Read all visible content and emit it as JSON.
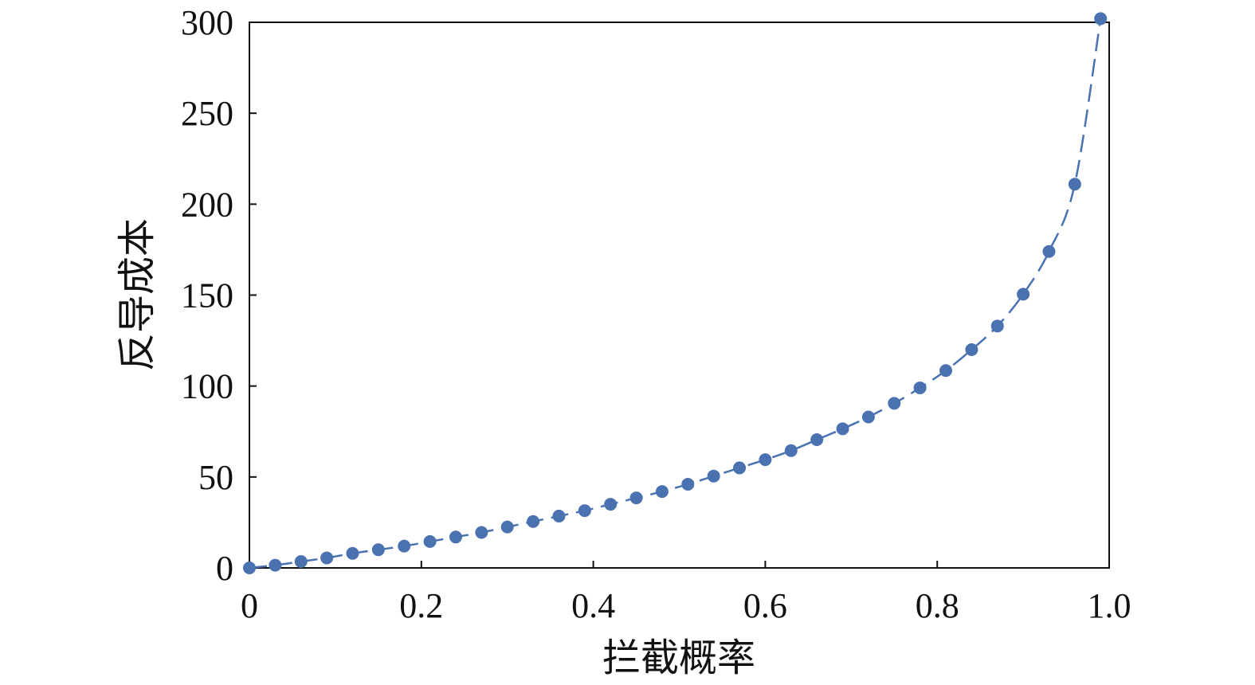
{
  "chart_data": {
    "type": "scatter",
    "title": "",
    "xlabel": "拦截概率",
    "ylabel": "反导成本",
    "xlim": [
      0,
      1.0
    ],
    "ylim": [
      0,
      300
    ],
    "x_ticks": [
      "0",
      "0.2",
      "0.4",
      "0.6",
      "0.8",
      "1.0"
    ],
    "y_ticks": [
      "0",
      "50",
      "100",
      "150",
      "200",
      "250",
      "300"
    ],
    "grid": false,
    "legend": "none",
    "series": [
      {
        "color": "#4a72b0",
        "line_style": "dashed",
        "marker": "circle",
        "x": [
          0,
          0.03,
          0.06,
          0.09,
          0.12,
          0.15,
          0.18,
          0.21,
          0.24,
          0.27,
          0.3,
          0.33,
          0.36,
          0.39,
          0.42,
          0.45,
          0.48,
          0.51,
          0.54,
          0.57,
          0.6,
          0.63,
          0.66,
          0.69,
          0.72,
          0.75,
          0.78,
          0.81,
          0.84,
          0.87,
          0.9,
          0.93,
          0.96,
          0.99
        ],
        "y": [
          0,
          1.5,
          3.5,
          5.5,
          8,
          10,
          12,
          14.5,
          17,
          19.5,
          22.5,
          25.5,
          28.5,
          31.5,
          35,
          38.5,
          42,
          46,
          50.5,
          55,
          59.5,
          64.5,
          70.5,
          76.5,
          83,
          90.5,
          99,
          108.5,
          120,
          133,
          150.5,
          174,
          211,
          302
        ]
      }
    ]
  }
}
